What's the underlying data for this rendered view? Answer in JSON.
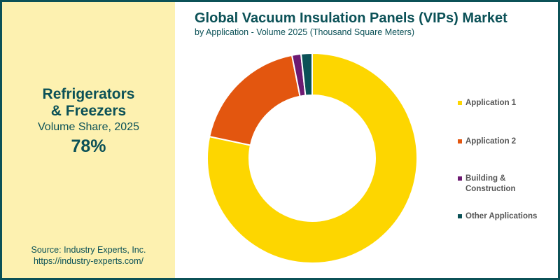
{
  "left_panel": {
    "highlight_title_line1": "Refrigerators",
    "highlight_title_line2": "& Freezers",
    "highlight_subtitle": "Volume Share, 2025",
    "highlight_value": "78%",
    "source_line1": "Source: Industry Experts, Inc.",
    "source_line2": "https://industry-experts.com/"
  },
  "header": {
    "title": "Global Vacuum Insulation Panels (VIPs) Market",
    "subtitle": "by Application - Volume 2025 (Thousand Square Meters)"
  },
  "colors": {
    "brand": "#0b5157",
    "panel_bg": "#fdf1b0",
    "application_1": "#fdd600",
    "application_2": "#e3560f",
    "building_construction": "#6d1a72",
    "other_applications": "#0b5157"
  },
  "legend": [
    {
      "label": "Application 1",
      "color": "#fdd600"
    },
    {
      "label": "Application 2",
      "color": "#e3560f"
    },
    {
      "label": "Building & Construction",
      "color": "#6d1a72"
    },
    {
      "label": "Other Applications",
      "color": "#0b5157"
    }
  ],
  "chart_data": {
    "type": "pie",
    "variant": "donut",
    "title": "Global Vacuum Insulation Panels (VIPs) Market",
    "subtitle": "by Application - Volume 2025 (Thousand Square Meters)",
    "categories": [
      "Application 1",
      "Application 2",
      "Building & Construction",
      "Other Applications"
    ],
    "values": [
      78.3,
      18.6,
      1.4,
      1.7
    ],
    "unit": "% share of volume",
    "colors": [
      "#fdd600",
      "#e3560f",
      "#6d1a72",
      "#0b5157"
    ],
    "start_angle": "12 o'clock, clockwise",
    "legend_position": "right",
    "annotation": "Refrigerators & Freezers Volume Share, 2025: 78%"
  }
}
